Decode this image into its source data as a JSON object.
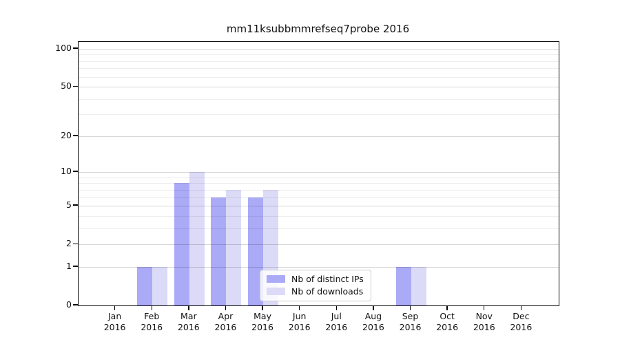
{
  "title": "mm11ksubbmmrefseq7probe 2016",
  "chart_data": {
    "type": "bar",
    "title": "mm11ksubbmmrefseq7probe 2016",
    "categories": [
      "Jan",
      "Feb",
      "Mar",
      "Apr",
      "May",
      "Jun",
      "Jul",
      "Aug",
      "Sep",
      "Oct",
      "Nov",
      "Dec"
    ],
    "category_year": "2016",
    "series": [
      {
        "name": "Nb of distinct IPs",
        "color": "#aaaaf7",
        "values": [
          0,
          1,
          8,
          6,
          6,
          0,
          0,
          0,
          1,
          0,
          0,
          0
        ]
      },
      {
        "name": "Nb of downloads",
        "color": "#dbdbf8",
        "values": [
          0,
          1,
          10,
          7,
          7,
          0,
          0,
          0,
          1,
          0,
          0,
          0
        ]
      }
    ],
    "y_axis": {
      "scale": "log1p",
      "tick_labels": [
        "0",
        "1",
        "2",
        "5",
        "10",
        "20",
        "50",
        "100"
      ],
      "ticks": [
        0,
        1,
        2,
        5,
        10,
        20,
        50,
        100
      ],
      "minor_ticks": [
        3,
        4,
        6,
        7,
        8,
        9,
        30,
        40,
        60,
        70,
        80,
        90
      ],
      "range": [
        0,
        113
      ]
    },
    "x_axis": {
      "label_line2": "2016"
    },
    "grid": true,
    "legend": {
      "position": "bottom-center",
      "entries": [
        "Nb of distinct IPs",
        "Nb of downloads"
      ]
    },
    "colors": {
      "distinct_ips": "#aaaaf7",
      "downloads": "#dbdbf8",
      "major_grid": "rgba(0,0,0,0.16)",
      "minor_grid": "rgba(0,0,0,0.07)",
      "spine": "#000000",
      "background": "#ffffff"
    }
  }
}
